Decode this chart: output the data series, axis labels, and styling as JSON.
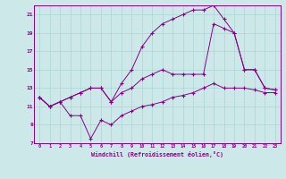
{
  "xlabel": "Windchill (Refroidissement éolien,°C)",
  "background_color": "#cce8e8",
  "line_color": "#880088",
  "grid_color": "#aad4d4",
  "xlim": [
    -0.5,
    23.5
  ],
  "ylim": [
    7,
    22
  ],
  "xticks": [
    0,
    1,
    2,
    3,
    4,
    5,
    6,
    7,
    8,
    9,
    10,
    11,
    12,
    13,
    14,
    15,
    16,
    17,
    18,
    19,
    20,
    21,
    22,
    23
  ],
  "yticks": [
    7,
    9,
    11,
    13,
    15,
    17,
    19,
    21
  ],
  "line1_x": [
    0,
    1,
    2,
    3,
    4,
    5,
    6,
    7,
    8,
    9,
    10,
    11,
    12,
    13,
    14,
    15,
    16,
    17,
    18,
    19,
    20,
    21,
    22,
    23
  ],
  "line1_y": [
    12,
    11,
    11.5,
    10,
    10,
    7.5,
    9.5,
    9,
    10,
    10.5,
    11,
    11.2,
    11.5,
    12,
    12.2,
    12.5,
    13,
    13.5,
    13,
    13,
    13,
    12.8,
    12.5,
    12.5
  ],
  "line2_x": [
    0,
    1,
    2,
    3,
    4,
    5,
    6,
    7,
    8,
    9,
    10,
    11,
    12,
    13,
    14,
    15,
    16,
    17,
    18,
    19,
    20,
    21,
    22,
    23
  ],
  "line2_y": [
    12,
    11,
    11.5,
    12,
    12.5,
    13,
    13,
    11.5,
    12.5,
    13,
    14,
    14.5,
    15,
    14.5,
    14.5,
    14.5,
    14.5,
    20,
    19.5,
    19,
    15,
    15,
    13,
    12.8
  ],
  "line3_x": [
    0,
    1,
    2,
    3,
    4,
    5,
    6,
    7,
    8,
    9,
    10,
    11,
    12,
    13,
    14,
    15,
    16,
    17,
    18,
    19,
    20,
    21,
    22,
    23
  ],
  "line3_y": [
    12,
    11,
    11.5,
    12,
    12.5,
    13,
    13,
    11.5,
    13.5,
    15,
    17.5,
    19,
    20,
    20.5,
    21,
    21.5,
    21.5,
    22,
    20.5,
    19,
    15,
    15,
    13,
    12.8
  ]
}
